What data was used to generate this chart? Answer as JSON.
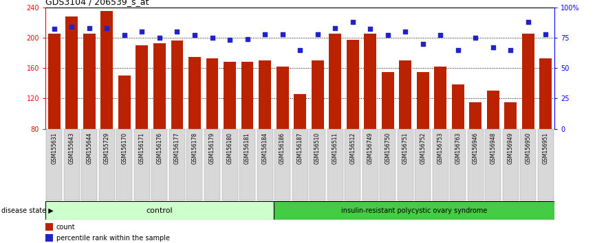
{
  "title": "GDS3104 / 206539_s_at",
  "samples": [
    "GSM155631",
    "GSM155643",
    "GSM155644",
    "GSM155729",
    "GSM156170",
    "GSM156171",
    "GSM156176",
    "GSM156177",
    "GSM156178",
    "GSM156179",
    "GSM156180",
    "GSM156181",
    "GSM156184",
    "GSM156186",
    "GSM156187",
    "GSM156510",
    "GSM156511",
    "GSM156512",
    "GSM156749",
    "GSM156750",
    "GSM156751",
    "GSM156752",
    "GSM156753",
    "GSM156763",
    "GSM156946",
    "GSM156948",
    "GSM156949",
    "GSM156950",
    "GSM156951"
  ],
  "counts": [
    205,
    228,
    205,
    235,
    150,
    190,
    193,
    196,
    175,
    173,
    168,
    168,
    170,
    162,
    126,
    170,
    205,
    197,
    205,
    155,
    170,
    155,
    162,
    138,
    115,
    130,
    115,
    205,
    173
  ],
  "percentile_ranks": [
    82,
    84,
    83,
    83,
    77,
    80,
    75,
    80,
    77,
    75,
    73,
    74,
    78,
    78,
    65,
    78,
    83,
    88,
    82,
    77,
    80,
    70,
    77,
    65,
    75,
    67,
    65,
    88,
    78
  ],
  "control_count": 13,
  "disease_count": 16,
  "bar_color": "#BB2200",
  "dot_color": "#2222CC",
  "ymin": 80,
  "ymax": 240,
  "yticks_left": [
    80,
    120,
    160,
    200,
    240
  ],
  "yticks_right": [
    0,
    25,
    50,
    75,
    100
  ],
  "yticklabels_right": [
    "0",
    "25",
    "50",
    "75",
    "100%"
  ],
  "grid_lines": [
    120,
    160,
    200
  ],
  "control_label": "control",
  "disease_label": "insulin-resistant polycystic ovary syndrome",
  "disease_state_label": "disease state",
  "legend_count_label": "count",
  "legend_pct_label": "percentile rank within the sample",
  "control_color": "#CCFFCC",
  "disease_color": "#44CC44",
  "xtick_bg": "#D8D8D8"
}
